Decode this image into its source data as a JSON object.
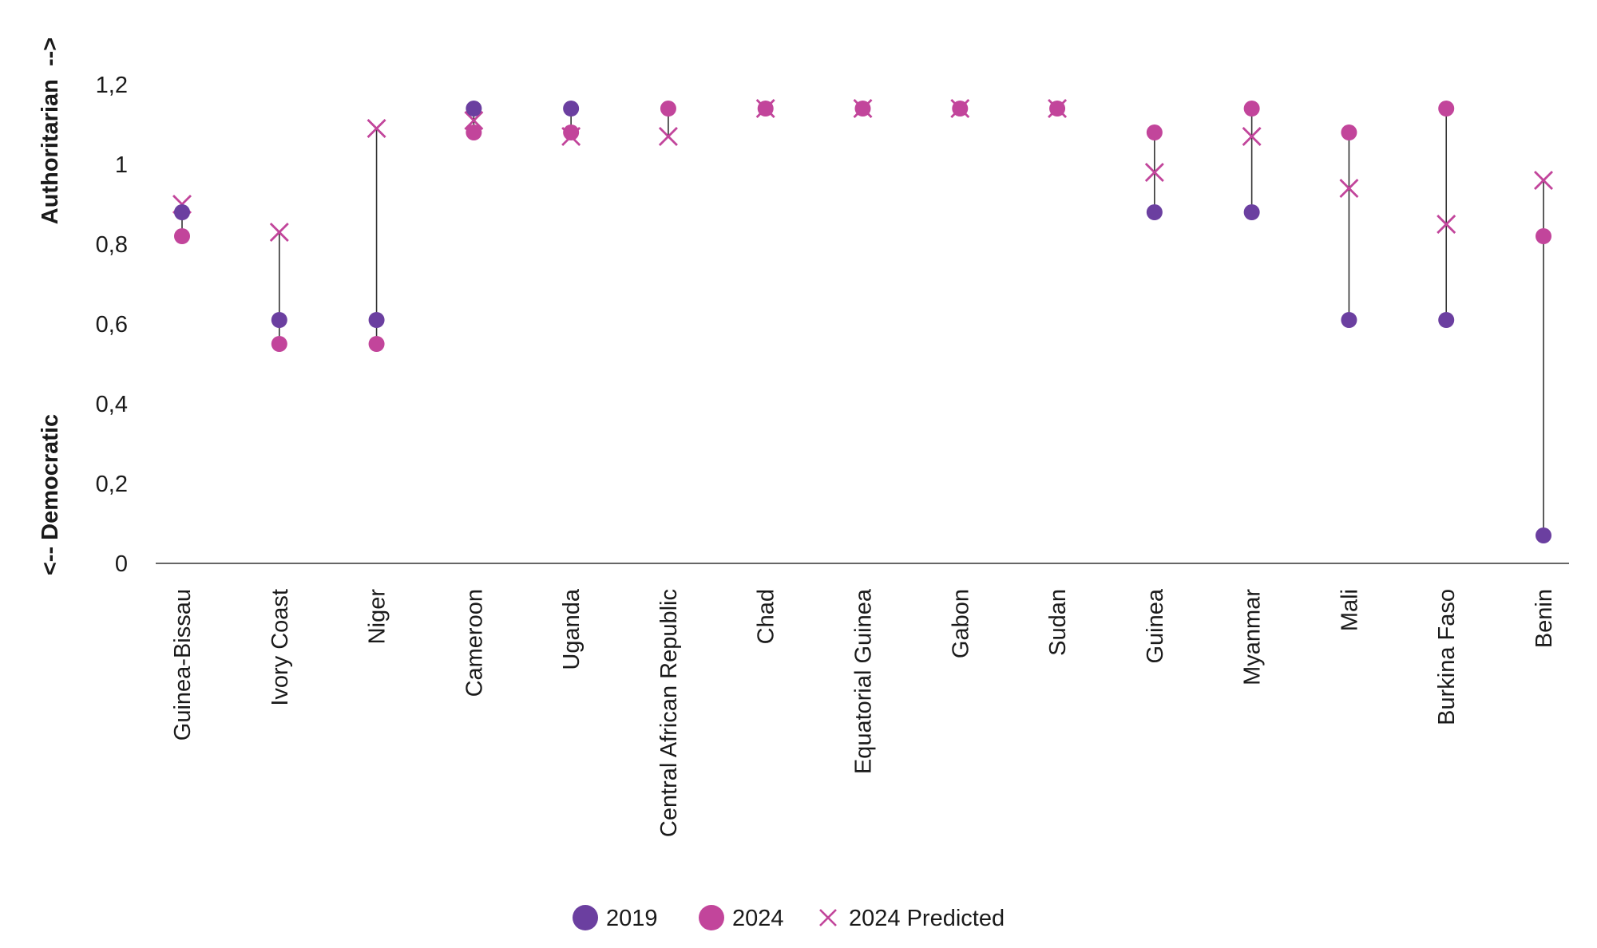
{
  "chart_data": {
    "type": "scatter",
    "title": "",
    "xlabel": "",
    "ylabel_top": "Authoritarian  -->",
    "ylabel_bottom": "<-- Democratic",
    "ylim": [
      0,
      1.2
    ],
    "yticks": [
      0,
      0.2,
      0.4,
      0.6,
      0.8,
      1,
      1.2
    ],
    "ytick_labels": [
      "0",
      "0,2",
      "0,4",
      "0,6",
      "0,8",
      "1",
      "1,2"
    ],
    "grid": false,
    "legend_position": "bottom",
    "categories": [
      "Guinea-Bissau",
      "Ivory Coast",
      "Niger",
      "Cameroon",
      "Uganda",
      "Central African Republic",
      "Chad",
      "Equatorial Guinea",
      "Gabon",
      "Sudan",
      "Guinea",
      "Myanmar",
      "Mali",
      "Burkina Faso",
      "Benin"
    ],
    "series": [
      {
        "name": "2019",
        "marker": "circle",
        "color": "#6b3fa0",
        "values": [
          0.88,
          0.61,
          0.61,
          1.14,
          1.14,
          null,
          null,
          null,
          null,
          null,
          0.88,
          0.88,
          0.61,
          0.61,
          0.07
        ]
      },
      {
        "name": "2024",
        "marker": "circle",
        "color": "#c2459b",
        "values": [
          0.82,
          0.55,
          0.55,
          1.08,
          1.08,
          1.14,
          1.14,
          1.14,
          1.14,
          1.14,
          1.08,
          1.14,
          1.08,
          1.14,
          0.82
        ]
      },
      {
        "name": "2024 Predicted",
        "marker": "x",
        "color": "#c2459b",
        "values": [
          0.9,
          0.83,
          1.09,
          1.11,
          1.07,
          1.07,
          1.14,
          1.14,
          1.14,
          1.14,
          0.98,
          1.07,
          0.94,
          0.85,
          0.96
        ]
      }
    ],
    "axis_color": "#333333",
    "range_line_color": "#333333"
  }
}
